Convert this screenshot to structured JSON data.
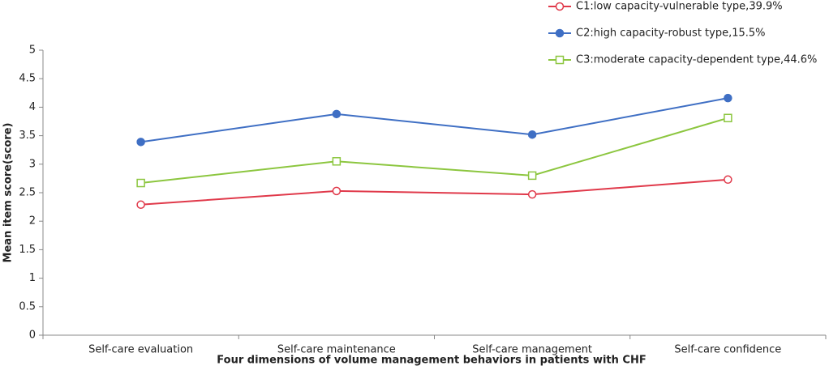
{
  "chart_data": {
    "type": "line",
    "xlabel": "Four dimensions of volume management behaviors in patients with CHF",
    "ylabel": "Mean item score(score)",
    "categories": [
      "Self-care evaluation",
      "Self-care maintenance",
      "Self-care management",
      "Self-care confidence"
    ],
    "series": [
      {
        "name": "C1:low capacity-vulnerable type,39.9%",
        "color": "#e0394a",
        "marker": "circle-open",
        "values": [
          2.29,
          2.53,
          2.47,
          2.73
        ]
      },
      {
        "name": "C2:high capacity-robust type,15.5%",
        "color": "#3f6fc4",
        "marker": "circle-filled",
        "values": [
          3.39,
          3.88,
          3.52,
          4.16
        ]
      },
      {
        "name": "C3:moderate capacity-dependent type,44.6%",
        "color": "#8cc63f",
        "marker": "square-open",
        "values": [
          2.67,
          3.05,
          2.8,
          3.81
        ]
      }
    ],
    "ylim": [
      0,
      5
    ],
    "yticks": [
      0,
      0.5,
      1,
      1.5,
      2,
      2.5,
      3,
      3.5,
      4,
      4.5,
      5
    ],
    "grid": false
  }
}
